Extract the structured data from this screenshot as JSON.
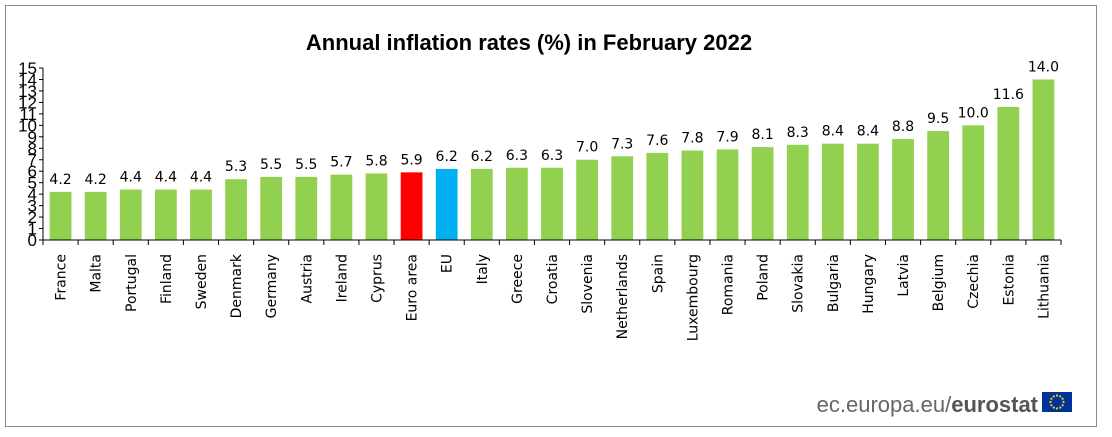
{
  "chart_data": {
    "type": "bar",
    "title": "Annual inflation rates (%) in February 2022",
    "categories": [
      "France",
      "Malta",
      "Portugal",
      "Finland",
      "Sweden",
      "Denmark",
      "Germany",
      "Austria",
      "Ireland",
      "Cyprus",
      "Euro area",
      "EU",
      "Italy",
      "Greece",
      "Croatia",
      "Slovenia",
      "Netherlands",
      "Spain",
      "Luxembourg",
      "Romania",
      "Poland",
      "Slovakia",
      "Bulgaria",
      "Hungary",
      "Latvia",
      "Belgium",
      "Czechia",
      "Estonia",
      "Lithuania"
    ],
    "values": [
      4.2,
      4.2,
      4.4,
      4.4,
      4.4,
      5.3,
      5.5,
      5.5,
      5.7,
      5.8,
      5.9,
      6.2,
      6.2,
      6.3,
      6.3,
      7.0,
      7.3,
      7.6,
      7.8,
      7.9,
      8.1,
      8.3,
      8.4,
      8.4,
      8.8,
      9.5,
      10.0,
      11.6,
      14.0
    ],
    "data_labels": [
      "4.2",
      "4.2",
      "4.4",
      "4.4",
      "4.4",
      "5.3",
      "5.5",
      "5.5",
      "5.7",
      "5.8",
      "5.9",
      "6.2",
      "6.2",
      "6.3",
      "6.3",
      "7.0",
      "7.3",
      "7.6",
      "7.8",
      "7.9",
      "8.1",
      "8.3",
      "8.4",
      "8.4",
      "8.8",
      "9.5",
      "10.0",
      "11.6",
      "14.0"
    ],
    "yticks": [
      "0",
      "1",
      "2",
      "3",
      "4",
      "5",
      "6",
      "7",
      "8",
      "9",
      "10",
      "11",
      "12",
      "13",
      "14",
      "15"
    ],
    "ylim": [
      0,
      15
    ],
    "xlabel": "",
    "ylabel": "",
    "grid": false,
    "legend": "none",
    "colors": {
      "default": "#92d050",
      "Euro area": "#ff0000",
      "EU": "#00b0f0"
    }
  },
  "source": {
    "prefix": "ec.europa.eu/",
    "brand": "eurostat",
    "flag_icon": "eu-flag-icon"
  }
}
